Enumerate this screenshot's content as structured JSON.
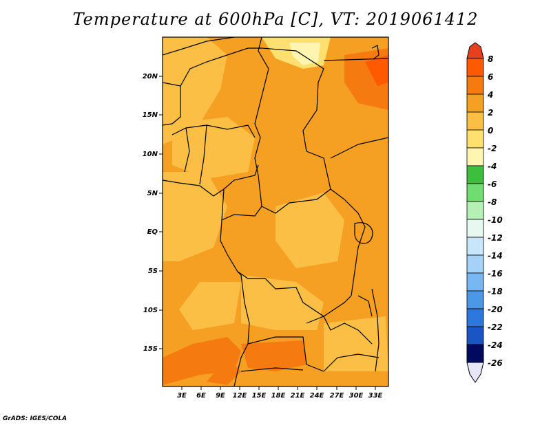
{
  "title": "Temperature at 600hPa [C], VT: 2019061412",
  "credit": "GrADS: IGES/COLA",
  "lat_labels": [
    "20N",
    "15N",
    "10N",
    "5N",
    "EQ",
    "5S",
    "10S",
    "15S"
  ],
  "lon_labels": [
    "3E",
    "6E",
    "9E",
    "12E",
    "15E",
    "18E",
    "21E",
    "24E",
    "27E",
    "30E",
    "33E"
  ],
  "colorbar": {
    "levels": [
      "8",
      "6",
      "4",
      "2",
      "0",
      "-2",
      "-4",
      "-6",
      "-8",
      "-10",
      "-12",
      "-14",
      "-16",
      "-18",
      "-20",
      "-22",
      "-24",
      "-26"
    ],
    "colors": [
      "#e8401e",
      "#ff5a00",
      "#f57a10",
      "#f5a023",
      "#fbbf45",
      "#fde070",
      "#fff5b0",
      "#3cbf3c",
      "#6fdd6f",
      "#b4f0b4",
      "#e6f8f0",
      "#c8e6fa",
      "#a6d2f8",
      "#78b8f2",
      "#4c98e8",
      "#2c78dc",
      "#1a55c4",
      "#0d34a6",
      "#020a60",
      "#e6e6f6"
    ]
  },
  "fill_colors": {
    "land_base": "#fbbf45",
    "warm": "#f5a023",
    "hot": "#f57a10",
    "hottest": "#ff5a00",
    "cool": "#fde070",
    "coolest": "#fff5b0"
  }
}
